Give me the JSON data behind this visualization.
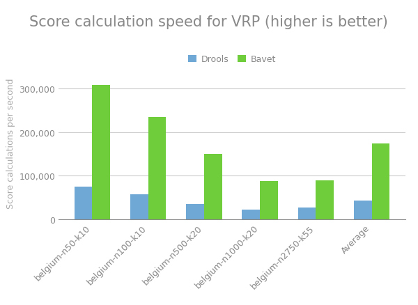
{
  "title": "Score calculation speed for VRP (higher is better)",
  "ylabel": "Score calculations per second",
  "categories": [
    "belgium-n50-k10",
    "belgium-n100-k10",
    "belgium-n500-k20",
    "belgium-n1000-k20",
    "belgium-n2750-k55",
    "Average"
  ],
  "drools_values": [
    75000,
    57000,
    35000,
    22000,
    28000,
    43000
  ],
  "bavet_values": [
    308000,
    235000,
    150000,
    88000,
    90000,
    174000
  ],
  "drools_color": "#6fa8d4",
  "bavet_color": "#6fcc3a",
  "legend_labels": [
    "Drools",
    "Bavet"
  ],
  "ylim": [
    0,
    350000
  ],
  "yticks": [
    0,
    100000,
    200000,
    300000
  ],
  "background_color": "#ffffff",
  "title_fontsize": 15,
  "tick_label_fontsize": 9,
  "ylabel_fontsize": 9,
  "bar_width": 0.32
}
